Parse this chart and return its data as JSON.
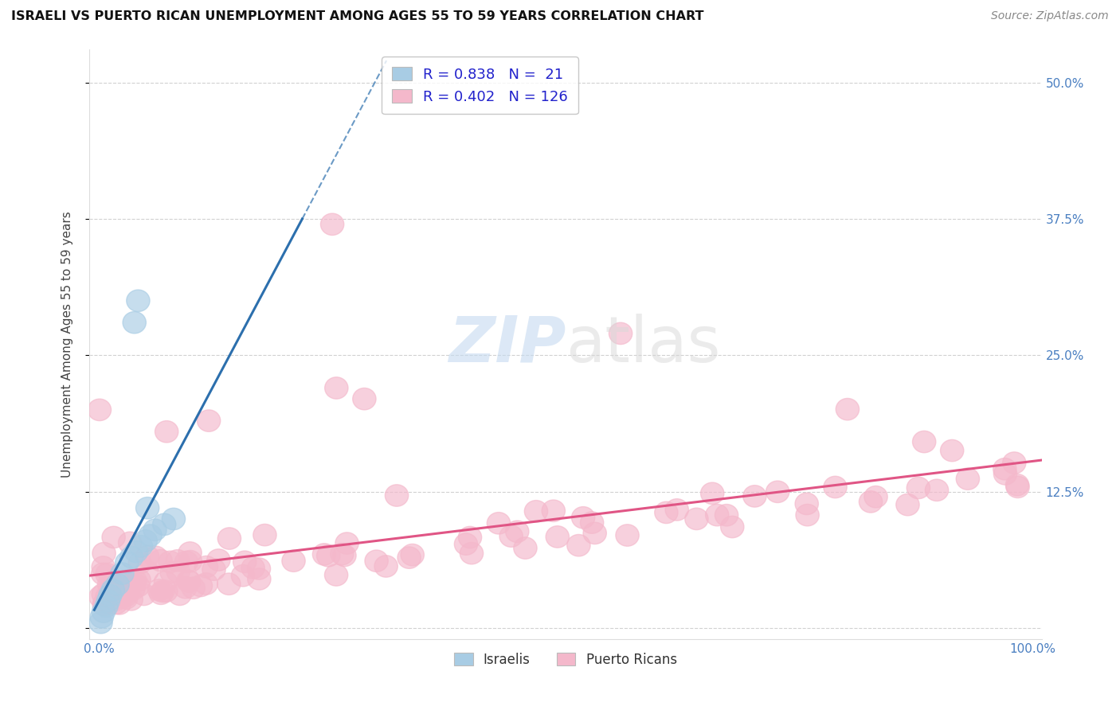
{
  "title": "ISRAELI VS PUERTO RICAN UNEMPLOYMENT AMONG AGES 55 TO 59 YEARS CORRELATION CHART",
  "source": "Source: ZipAtlas.com",
  "ylabel": "Unemployment Among Ages 55 to 59 years",
  "xlim": [
    -1,
    101
  ],
  "ylim": [
    -1,
    53
  ],
  "yticks": [
    0,
    12.5,
    25.0,
    37.5,
    50.0
  ],
  "xticks": [
    0,
    100
  ],
  "xtick_labels": [
    "0.0%",
    "100.0%"
  ],
  "ytick_labels_right": [
    "",
    "12.5%",
    "25.0%",
    "37.5%",
    "50.0%"
  ],
  "legend_R_israeli": "0.838",
  "legend_N_israeli": "21",
  "legend_R_puerto": "0.402",
  "legend_N_puerto": "126",
  "israeli_color": "#a8cce4",
  "puerto_color": "#f4b8cb",
  "israeli_line_color": "#2c6fad",
  "puerto_line_color": "#e05585",
  "grid_color": "#cccccc",
  "watermark_zip_color": "#c5daf0",
  "watermark_atlas_color": "#d8d8d8"
}
